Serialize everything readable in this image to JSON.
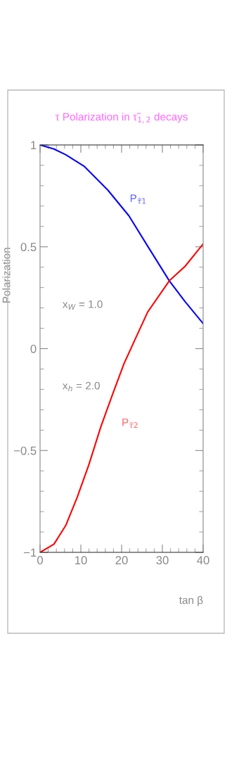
{
  "chart_data": {
    "type": "line",
    "title": "τ Polarization in τ̃$_{1,2}$ decays",
    "xlabel": "tan β",
    "ylabel": "Polarization",
    "xlim": [
      0,
      40
    ],
    "ylim": [
      -1,
      1
    ],
    "xticks": [
      0,
      10,
      20,
      30,
      40
    ],
    "yticks": [
      -1,
      -0.5,
      0,
      0.5,
      1
    ],
    "series": [
      {
        "name": "P$_{τ̃1}$",
        "color": "#0000ff",
        "x": [
          0,
          3.4,
          6.3,
          10.9,
          16.6,
          21.8,
          26.4,
          31.7,
          35.6,
          40
        ],
        "values": [
          1,
          0.98,
          0.952,
          0.894,
          0.779,
          0.652,
          0.503,
          0.333,
          0.23,
          0.123
        ]
      },
      {
        "name": "P$_{τ̃2}$",
        "color": "#ff0000",
        "x": [
          0,
          3.4,
          6.3,
          9.1,
          12.0,
          14.9,
          17.8,
          20.6,
          23.5,
          26.4,
          31.7,
          35.6,
          40
        ],
        "values": [
          -1,
          -0.96,
          -0.868,
          -0.73,
          -0.568,
          -0.384,
          -0.223,
          -0.073,
          0.054,
          0.18,
          0.333,
          0.405,
          0.514
        ]
      }
    ],
    "annotations": [
      "x$_{W}$ = 1.0",
      "x$_{h}$ = 2.0"
    ],
    "grid": false,
    "legend": false,
    "marker": "none",
    "line_style": "solid"
  }
}
